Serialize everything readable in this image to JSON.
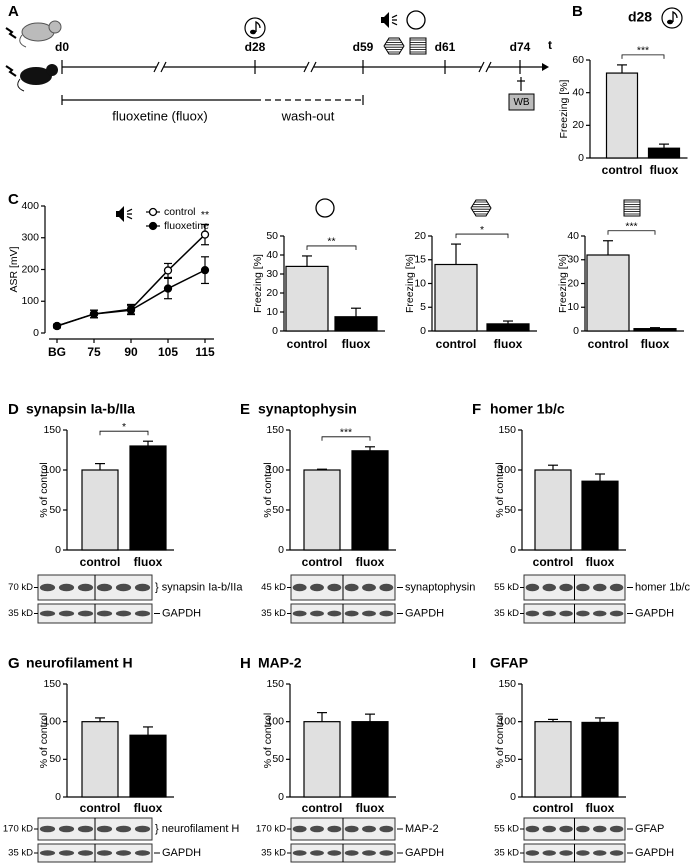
{
  "timeline": {
    "label": "A",
    "days": [
      "d0",
      "d28",
      "d59",
      "d61",
      "d74"
    ],
    "axis_label": "t",
    "treatment": "fluoxetine (fluox)",
    "washout": "wash-out",
    "assay": "WB"
  },
  "chart_data": [
    {
      "type": "bar",
      "label": "B",
      "title": "d28",
      "categories": [
        "control",
        "fluox"
      ],
      "values": [
        52,
        6
      ],
      "errors": [
        5,
        2.5
      ],
      "colors": [
        "#e0e0e0",
        "#000000"
      ],
      "ylabel": "Freezing [%]",
      "ylim": [
        0,
        60
      ],
      "yticks": [
        0,
        20,
        40,
        60
      ],
      "significance": "***"
    },
    {
      "type": "line",
      "label": "C",
      "categories": [
        "BG",
        "75",
        "90",
        "105",
        "115"
      ],
      "series": [
        {
          "name": "control",
          "color": "#000000",
          "marker_fill": "#ffffff",
          "values": [
            22,
            60,
            75,
            197,
            310
          ],
          "errors": [
            6,
            12,
            15,
            22,
            32
          ]
        },
        {
          "name": "fluoxetine",
          "color": "#000000",
          "marker_fill": "#000000",
          "values": [
            22,
            60,
            72,
            140,
            198
          ],
          "errors": [
            6,
            12,
            14,
            32,
            42
          ]
        }
      ],
      "ylabel": "ASR [mV]",
      "ylim": [
        0,
        400
      ],
      "yticks": [
        0,
        100,
        200,
        300,
        400
      ],
      "annotation": "**",
      "legend": "top-right"
    },
    {
      "type": "bar",
      "categories": [
        "control",
        "fluox"
      ],
      "values": [
        34,
        7.5
      ],
      "errors": [
        5.5,
        4.5
      ],
      "colors": [
        "#e0e0e0",
        "#000000"
      ],
      "ylabel": "Freezing [%]",
      "ylim": [
        0,
        50
      ],
      "yticks": [
        0,
        10,
        20,
        30,
        40,
        50
      ],
      "significance": "**"
    },
    {
      "type": "bar",
      "categories": [
        "control",
        "fluox"
      ],
      "values": [
        14,
        1.5
      ],
      "errors": [
        4.3,
        0.6
      ],
      "colors": [
        "#e0e0e0",
        "#000000"
      ],
      "ylabel": "Freezing [%]",
      "ylim": [
        0,
        20
      ],
      "yticks": [
        0,
        5,
        10,
        15,
        20
      ],
      "significance": "*"
    },
    {
      "type": "bar",
      "categories": [
        "control",
        "fluox"
      ],
      "values": [
        32,
        1
      ],
      "errors": [
        6,
        0.4
      ],
      "colors": [
        "#e0e0e0",
        "#000000"
      ],
      "ylabel": "Freezing [%]",
      "ylim": [
        0,
        40
      ],
      "yticks": [
        0,
        10,
        20,
        30,
        40
      ],
      "significance": "***"
    },
    {
      "type": "bar",
      "label": "D",
      "title": "synapsin Ia-b/IIa",
      "categories": [
        "control",
        "fluox"
      ],
      "values": [
        100,
        130
      ],
      "errors": [
        8,
        6
      ],
      "colors": [
        "#e0e0e0",
        "#000000"
      ],
      "ylabel": "% of control",
      "ylim": [
        0,
        150
      ],
      "yticks": [
        0,
        50,
        100,
        150
      ],
      "significance": "*",
      "blot": [
        {
          "kd": "70 kD",
          "label": "} synapsin Ia-b/IIa"
        },
        {
          "kd": "35 kD",
          "label": "GAPDH"
        }
      ]
    },
    {
      "type": "bar",
      "label": "E",
      "title": "synaptophysin",
      "categories": [
        "control",
        "fluox"
      ],
      "values": [
        100,
        124
      ],
      "errors": [
        1,
        5
      ],
      "colors": [
        "#e0e0e0",
        "#000000"
      ],
      "ylabel": "% of control",
      "ylim": [
        0,
        150
      ],
      "yticks": [
        0,
        50,
        100,
        150
      ],
      "significance": "***",
      "blot": [
        {
          "kd": "45 kD",
          "label": "synaptophysin"
        },
        {
          "kd": "35 kD",
          "label": "GAPDH"
        }
      ]
    },
    {
      "type": "bar",
      "label": "F",
      "title": "homer 1b/c",
      "categories": [
        "control",
        "fluox"
      ],
      "values": [
        100,
        86
      ],
      "errors": [
        6,
        9
      ],
      "colors": [
        "#e0e0e0",
        "#000000"
      ],
      "ylabel": "% of control",
      "ylim": [
        0,
        150
      ],
      "yticks": [
        0,
        50,
        100,
        150
      ],
      "blot": [
        {
          "kd": "55 kD",
          "label": "homer 1b/c"
        },
        {
          "kd": "35 kD",
          "label": "GAPDH"
        }
      ]
    },
    {
      "type": "bar",
      "label": "G",
      "title": "neurofilament H",
      "categories": [
        "control",
        "fluox"
      ],
      "values": [
        100,
        82
      ],
      "errors": [
        5,
        11
      ],
      "colors": [
        "#e0e0e0",
        "#000000"
      ],
      "ylabel": "% of control",
      "ylim": [
        0,
        150
      ],
      "yticks": [
        0,
        50,
        100,
        150
      ],
      "blot": [
        {
          "kd": "170 kD",
          "label": "} neurofilament H"
        },
        {
          "kd": "35 kD",
          "label": "GAPDH"
        }
      ]
    },
    {
      "type": "bar",
      "label": "H",
      "title": "MAP-2",
      "categories": [
        "control",
        "fluox"
      ],
      "values": [
        100,
        100
      ],
      "errors": [
        12,
        10
      ],
      "colors": [
        "#e0e0e0",
        "#000000"
      ],
      "ylabel": "% of control",
      "ylim": [
        0,
        150
      ],
      "yticks": [
        0,
        50,
        100,
        150
      ],
      "blot": [
        {
          "kd": "170 kD",
          "label": "MAP-2"
        },
        {
          "kd": "35 kD",
          "label": "GAPDH"
        }
      ]
    },
    {
      "type": "bar",
      "label": "I",
      "title": "GFAP",
      "categories": [
        "control",
        "fluox"
      ],
      "values": [
        100,
        99
      ],
      "errors": [
        3,
        6
      ],
      "colors": [
        "#e0e0e0",
        "#000000"
      ],
      "ylabel": "% of control",
      "ylim": [
        0,
        150
      ],
      "yticks": [
        0,
        50,
        100,
        150
      ],
      "blot": [
        {
          "kd": "55 kD",
          "label": "GFAP"
        },
        {
          "kd": "35 kD",
          "label": "GAPDH"
        }
      ]
    }
  ]
}
